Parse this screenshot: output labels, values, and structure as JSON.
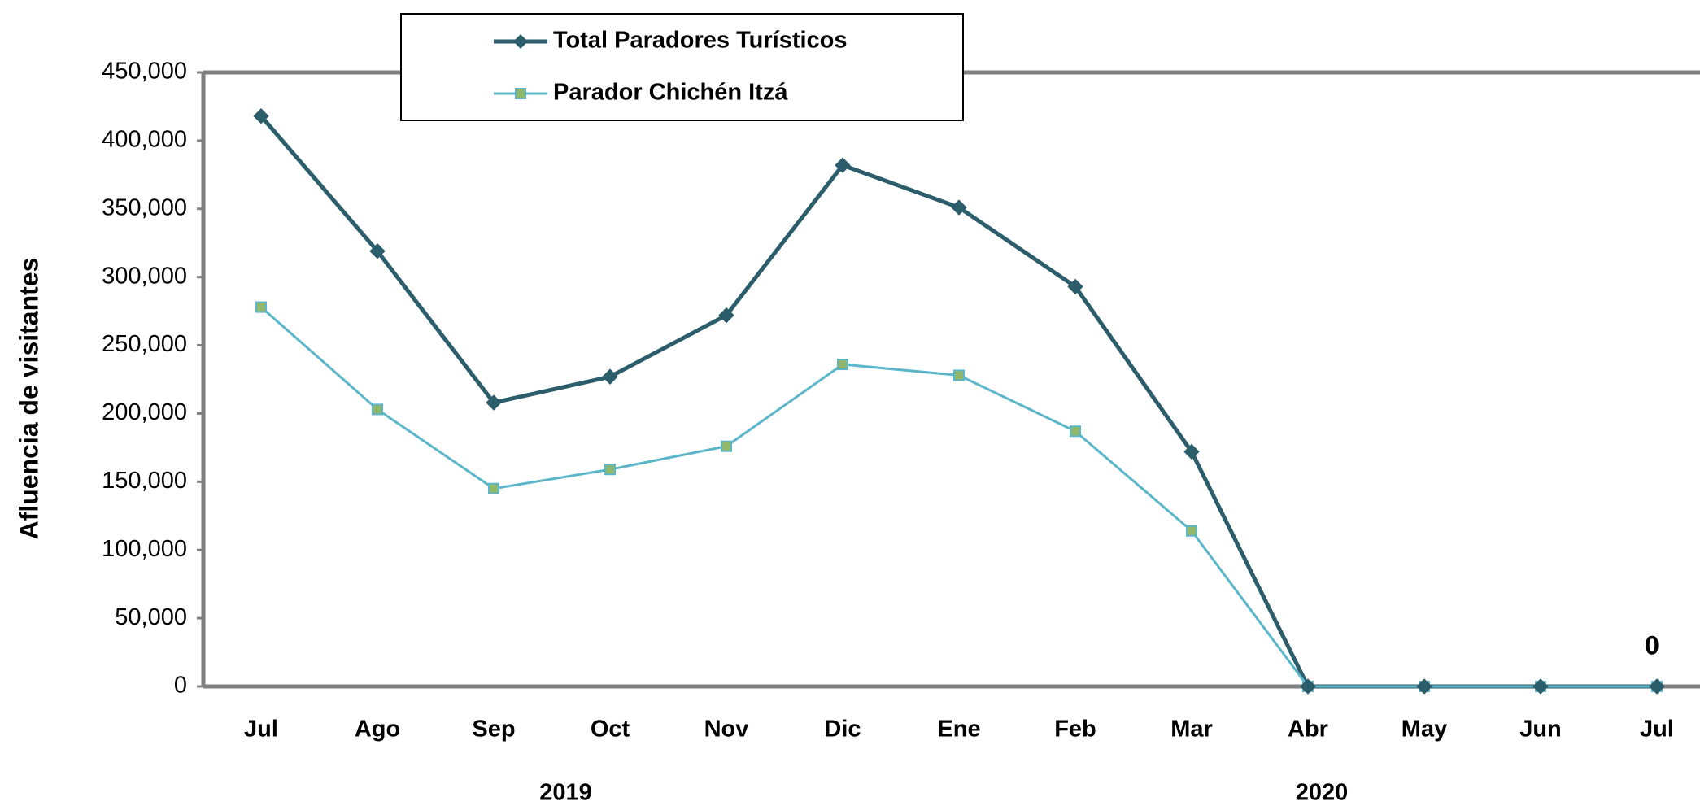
{
  "chart_data": {
    "type": "line",
    "y_label": "Afluencia de visitantes",
    "categories": [
      "Jul",
      "Ago",
      "Sep",
      "Oct",
      "Nov",
      "Dic",
      "Ene",
      "Feb",
      "Mar",
      "Abr",
      "May",
      "Jun",
      "Jul"
    ],
    "x_groups": [
      {
        "label": "2019",
        "span": 6
      },
      {
        "label": "2020",
        "span": 7
      }
    ],
    "series": [
      {
        "name": "Total Paradores Turísticos",
        "color": "#2b5d6b",
        "marker": "diamond",
        "marker_fill": "#2b5d6b",
        "values": [
          418000,
          319000,
          208000,
          227000,
          272000,
          382000,
          351000,
          293000,
          172000,
          0,
          0,
          0,
          0
        ]
      },
      {
        "name": "Parador Chichén Itzá",
        "color": "#5cb6c9",
        "marker": "square",
        "marker_fill": "#8fb86a",
        "values": [
          278000,
          203000,
          145000,
          159000,
          176000,
          236000,
          228000,
          187000,
          114000,
          0,
          0,
          0,
          0
        ]
      }
    ],
    "ylim": [
      0,
      450000
    ],
    "yticks": [
      0,
      {
        "value": 50000,
        "label": "50,000"
      },
      {
        "value": 100000,
        "label": "100,000"
      },
      {
        "value": 150000,
        "label": "150,000"
      },
      {
        "value": 200000,
        "label": "200,000"
      },
      {
        "value": 250000,
        "label": "250,000"
      },
      {
        "value": 300000,
        "label": "300,000"
      },
      {
        "value": 350000,
        "label": "350,000"
      },
      {
        "value": 400000,
        "label": "400,000"
      },
      {
        "value": 450000,
        "label": "450,000"
      }
    ],
    "frame_color": "#7f7f7f",
    "legend": "top-left"
  }
}
